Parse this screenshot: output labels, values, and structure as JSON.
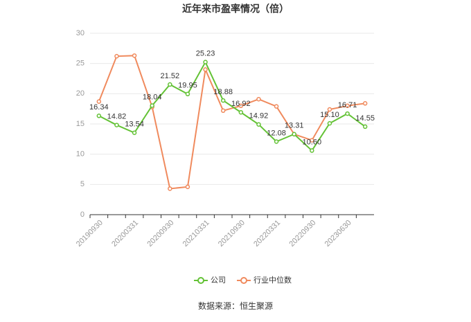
{
  "chart_data": {
    "type": "line",
    "title": "近年来市盈率情况（倍）",
    "source": "数据来源：恒生聚源",
    "categories": [
      "20190930",
      null,
      "20200331",
      null,
      "20200930",
      null,
      "20210331",
      null,
      "20210930",
      null,
      "20220331",
      null,
      "20220930",
      null,
      "20230630",
      null
    ],
    "series": [
      {
        "name": "公司",
        "color": "#63c235",
        "values": [
          16.34,
          14.82,
          13.54,
          18.04,
          21.52,
          19.95,
          25.23,
          18.88,
          16.92,
          14.92,
          12.08,
          13.31,
          10.6,
          15.1,
          16.71,
          14.55
        ],
        "value_labels": [
          "16.34",
          "14.82",
          "13.54",
          "18.04",
          "21.52",
          "19.95",
          "25.23",
          "18.88",
          "16.92",
          "14.92",
          "12.08",
          "13.31",
          "10.60",
          "15.10",
          "16.71",
          "14.55"
        ]
      },
      {
        "name": "行业中位数",
        "color": "#f08a5d",
        "values": [
          18.7,
          26.2,
          26.3,
          17.8,
          4.3,
          4.6,
          24.0,
          17.2,
          18.0,
          19.1,
          17.9,
          13.3,
          12.3,
          17.4,
          18.0,
          18.4
        ]
      }
    ],
    "ylim": [
      0,
      30
    ],
    "yticks": [
      0,
      5,
      10,
      15,
      20,
      25,
      30
    ],
    "grid": true
  }
}
